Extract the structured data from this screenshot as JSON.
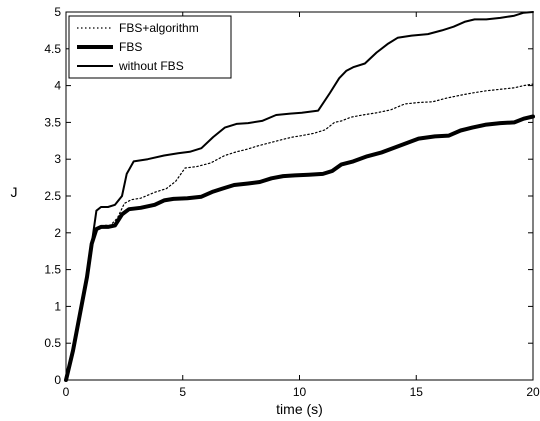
{
  "chart_data": {
    "type": "line",
    "title": "",
    "xlabel": "time (s)",
    "ylabel": "J",
    "xlim": [
      0,
      20
    ],
    "ylim": [
      0,
      5
    ],
    "xticks": [
      "0",
      "5",
      "10",
      "15",
      "20"
    ],
    "yticks": [
      "0",
      "0.5",
      "1",
      "1.5",
      "2",
      "2.5",
      "3",
      "3.5",
      "4",
      "4.5",
      "5"
    ],
    "grid": false,
    "legend": {
      "placement": "top-left"
    },
    "series": [
      {
        "name": "FBS+algorithm",
        "style": "dotted",
        "color": "#000000",
        "x": [
          0,
          0.3,
          0.6,
          0.9,
          1.1,
          1.3,
          1.6,
          1.9,
          2.2,
          2.5,
          2.8,
          3.2,
          3.8,
          4.3,
          4.7,
          5.1,
          5.6,
          6.2,
          6.8,
          7.3,
          7.7,
          8.2,
          8.8,
          9.3,
          9.7,
          10.1,
          10.6,
          11.1,
          11.5,
          11.8,
          12.2,
          12.7,
          13.3,
          13.9,
          14.5,
          15.1,
          15.7,
          16.3,
          16.9,
          17.4,
          18.0,
          18.6,
          19.2,
          19.6,
          20.0
        ],
        "y": [
          0.0,
          0.4,
          0.9,
          1.4,
          1.8,
          2.05,
          2.1,
          2.1,
          2.2,
          2.4,
          2.45,
          2.47,
          2.55,
          2.6,
          2.7,
          2.88,
          2.9,
          2.95,
          3.05,
          3.1,
          3.13,
          3.18,
          3.23,
          3.27,
          3.3,
          3.32,
          3.35,
          3.4,
          3.5,
          3.52,
          3.57,
          3.6,
          3.63,
          3.67,
          3.75,
          3.77,
          3.78,
          3.83,
          3.87,
          3.9,
          3.93,
          3.95,
          3.97,
          4.0,
          4.02
        ]
      },
      {
        "name": "FBS",
        "style": "thick",
        "color": "#000000",
        "x": [
          0,
          0.3,
          0.6,
          0.9,
          1.1,
          1.3,
          1.5,
          1.8,
          2.1,
          2.4,
          2.7,
          3.2,
          3.8,
          4.2,
          4.6,
          5.2,
          5.8,
          6.3,
          6.7,
          7.2,
          7.8,
          8.3,
          8.8,
          9.3,
          9.8,
          10.4,
          11.0,
          11.4,
          11.8,
          12.3,
          12.9,
          13.5,
          14.1,
          14.6,
          15.1,
          15.8,
          16.4,
          16.9,
          17.4,
          18.0,
          18.6,
          19.2,
          19.6,
          20.0
        ],
        "y": [
          0.0,
          0.4,
          0.9,
          1.4,
          1.85,
          2.05,
          2.08,
          2.08,
          2.1,
          2.25,
          2.32,
          2.34,
          2.38,
          2.44,
          2.46,
          2.47,
          2.49,
          2.56,
          2.6,
          2.65,
          2.67,
          2.69,
          2.74,
          2.77,
          2.78,
          2.79,
          2.8,
          2.84,
          2.93,
          2.97,
          3.04,
          3.09,
          3.16,
          3.22,
          3.28,
          3.31,
          3.32,
          3.39,
          3.43,
          3.47,
          3.49,
          3.5,
          3.55,
          3.58
        ]
      },
      {
        "name": "without FBS",
        "style": "solid",
        "color": "#000000",
        "x": [
          0,
          0.3,
          0.6,
          0.9,
          1.1,
          1.3,
          1.5,
          1.8,
          2.1,
          2.4,
          2.6,
          2.9,
          3.5,
          4.2,
          4.8,
          5.3,
          5.8,
          6.3,
          6.8,
          7.3,
          7.8,
          8.4,
          9.0,
          9.6,
          10.1,
          10.8,
          11.3,
          11.7,
          12.0,
          12.3,
          12.8,
          13.3,
          13.8,
          14.2,
          14.8,
          15.5,
          16.1,
          16.6,
          17.1,
          17.5,
          18.0,
          18.6,
          19.2,
          19.6,
          20.0
        ],
        "y": [
          0.0,
          0.4,
          0.9,
          1.4,
          1.85,
          2.3,
          2.35,
          2.35,
          2.38,
          2.5,
          2.8,
          2.97,
          3.0,
          3.05,
          3.08,
          3.1,
          3.15,
          3.3,
          3.43,
          3.48,
          3.49,
          3.52,
          3.6,
          3.62,
          3.63,
          3.66,
          3.9,
          4.1,
          4.2,
          4.25,
          4.3,
          4.45,
          4.57,
          4.65,
          4.68,
          4.7,
          4.75,
          4.8,
          4.87,
          4.9,
          4.9,
          4.92,
          4.95,
          4.99,
          5.0
        ]
      }
    ]
  }
}
